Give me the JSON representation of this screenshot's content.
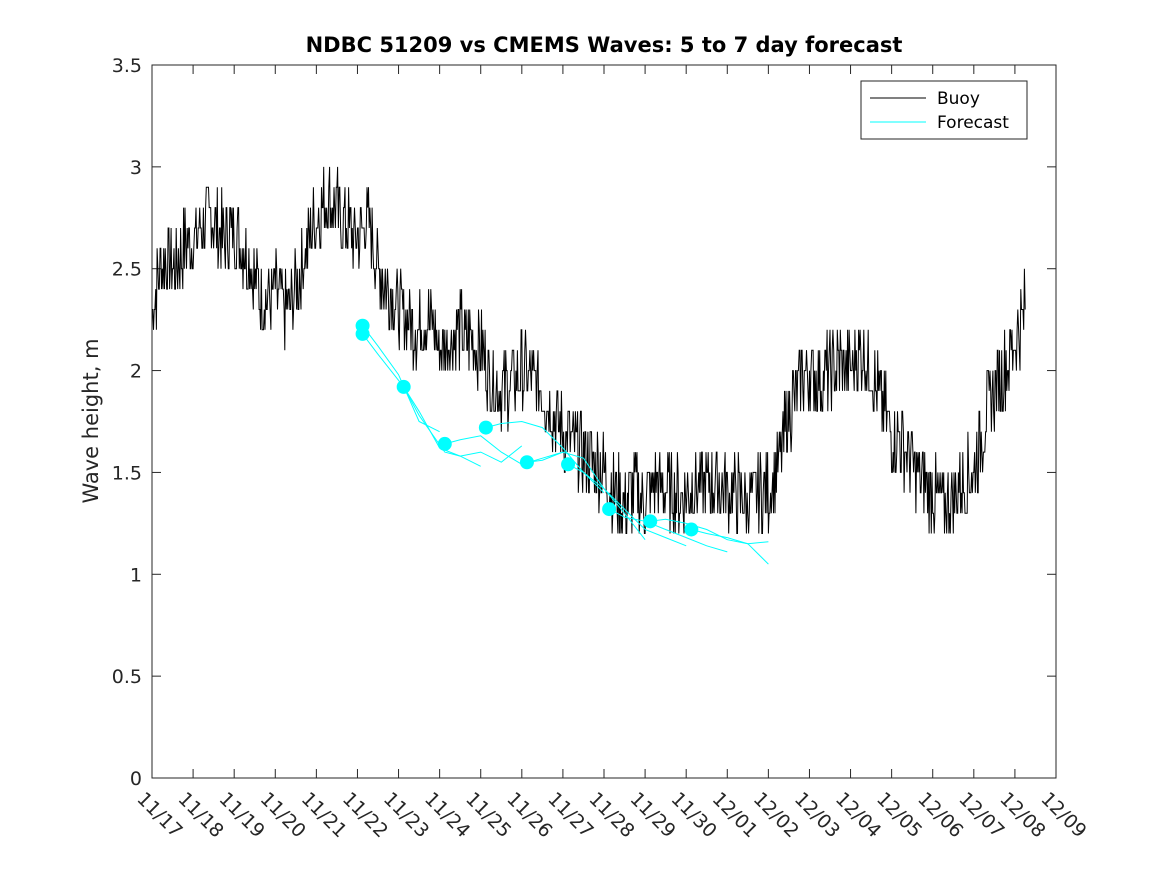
{
  "chart_data": {
    "type": "line",
    "title": "NDBC 51209 vs CMEMS Waves: 5 to 7 day forecast",
    "xlabel": "",
    "ylabel": "Wave height, m",
    "ylim": [
      0,
      3.5
    ],
    "yticks": [
      0,
      0.5,
      1,
      1.5,
      2,
      2.5,
      3,
      3.5
    ],
    "ytick_labels": [
      "0",
      "0.5",
      "1",
      "1.5",
      "2",
      "2.5",
      "3",
      "3.5"
    ],
    "xlim": [
      "11/17",
      "12/09"
    ],
    "xtick_labels": [
      "11/17",
      "11/18",
      "11/19",
      "11/20",
      "11/21",
      "11/22",
      "11/23",
      "11/24",
      "11/25",
      "11/26",
      "11/27",
      "11/28",
      "11/29",
      "11/30",
      "12/01",
      "12/02",
      "12/03",
      "12/04",
      "12/05",
      "12/06",
      "12/07",
      "12/08",
      "12/09"
    ],
    "grid": false,
    "legend": {
      "placement": "top-right",
      "entries": [
        "Buoy",
        "Forecast"
      ]
    },
    "colors": {
      "buoy": "#000000",
      "forecast": "#00FFFF"
    },
    "series": [
      {
        "name": "Buoy",
        "x": [
          "11/17",
          "11/17 06:00",
          "11/17 12:00",
          "11/17 18:00",
          "11/18",
          "11/18 06:00",
          "11/18 12:00",
          "11/18 18:00",
          "11/19",
          "11/19 06:00",
          "11/19 12:00",
          "11/19 18:00",
          "11/20",
          "11/20 06:00",
          "11/20 12:00",
          "11/20 18:00",
          "11/21",
          "11/21 06:00",
          "11/21 12:00",
          "11/21 18:00",
          "11/22",
          "11/22 06:00",
          "11/22 12:00",
          "11/22 18:00",
          "11/23",
          "11/23 06:00",
          "11/23 12:00",
          "11/23 18:00",
          "11/24",
          "11/24 06:00",
          "11/24 12:00",
          "11/24 18:00",
          "11/25",
          "11/25 06:00",
          "11/25 12:00",
          "11/25 18:00",
          "11/26",
          "11/26 06:00",
          "11/26 12:00",
          "11/26 18:00",
          "11/27",
          "11/27 06:00",
          "11/27 12:00",
          "11/27 18:00",
          "11/28",
          "11/28 06:00",
          "11/28 12:00",
          "11/28 18:00",
          "11/29",
          "11/29 06:00",
          "11/29 12:00",
          "11/29 18:00",
          "11/30",
          "11/30 06:00",
          "11/30 12:00",
          "11/30 18:00",
          "12/01",
          "12/01 06:00",
          "12/01 12:00",
          "12/01 18:00",
          "12/02",
          "12/02 06:00",
          "12/02 12:00",
          "12/02 18:00",
          "12/03",
          "12/03 06:00",
          "12/03 12:00",
          "12/03 18:00",
          "12/04",
          "12/04 06:00",
          "12/04 12:00",
          "12/04 18:00",
          "12/05",
          "12/05 06:00",
          "12/05 12:00",
          "12/05 18:00",
          "12/06",
          "12/06 06:00",
          "12/06 12:00",
          "12/06 18:00",
          "12/07",
          "12/07 06:00",
          "12/07 12:00",
          "12/07 18:00",
          "12/08",
          "12/08 06:00"
        ],
        "values": [
          2.3,
          2.55,
          2.5,
          2.6,
          2.65,
          2.7,
          2.75,
          2.65,
          2.7,
          2.6,
          2.45,
          2.35,
          2.4,
          2.3,
          2.4,
          2.6,
          2.75,
          2.85,
          2.8,
          2.7,
          2.65,
          2.75,
          2.5,
          2.4,
          2.3,
          2.25,
          2.2,
          2.25,
          2.1,
          2.15,
          2.2,
          2.15,
          2.1,
          1.95,
          1.9,
          1.95,
          2.0,
          1.95,
          1.9,
          1.8,
          1.7,
          1.65,
          1.6,
          1.55,
          1.5,
          1.4,
          1.35,
          1.4,
          1.35,
          1.45,
          1.4,
          1.4,
          1.4,
          1.45,
          1.45,
          1.45,
          1.4,
          1.4,
          1.35,
          1.4,
          1.4,
          1.55,
          1.8,
          1.95,
          2.0,
          1.95,
          2.0,
          2.05,
          2.0,
          2.1,
          2.0,
          1.85,
          1.7,
          1.65,
          1.55,
          1.45,
          1.4,
          1.35,
          1.4,
          1.45,
          1.5,
          1.75,
          1.9,
          2.0,
          2.15,
          2.3
        ]
      },
      {
        "name": "Forecast",
        "segments": [
          {
            "x": [
              "11/22 03:00",
              "11/22 12:00",
              "11/23",
              "11/23 12:00",
              "11/24"
            ],
            "values": [
              2.22,
              2.12,
              1.98,
              1.75,
              1.7
            ]
          },
          {
            "x": [
              "11/22 03:00",
              "11/22 12:00",
              "11/23 03:00",
              "11/23 12:00",
              "11/24",
              "11/24 12:00",
              "11/25"
            ],
            "values": [
              2.18,
              2.08,
              1.92,
              1.8,
              1.62,
              1.58,
              1.53
            ]
          },
          {
            "x": [
              "11/23 03:00",
              "11/23 12:00",
              "11/24 03:00",
              "11/24 12:00",
              "11/25",
              "11/25 12:00",
              "11/26"
            ],
            "values": [
              1.92,
              1.78,
              1.6,
              1.58,
              1.6,
              1.55,
              1.63
            ]
          },
          {
            "x": [
              "11/24 03:00",
              "11/24 12:00",
              "11/25",
              "11/25 12:00",
              "11/26",
              "11/26 12:00",
              "11/27"
            ],
            "values": [
              1.64,
              1.66,
              1.68,
              1.6,
              1.54,
              1.57,
              1.6
            ]
          },
          {
            "x": [
              "11/25 03:00",
              "11/25 12:00",
              "11/26",
              "11/26 12:00",
              "11/27",
              "11/27 12:00",
              "11/28"
            ],
            "values": [
              1.72,
              1.74,
              1.75,
              1.72,
              1.62,
              1.5,
              1.4
            ]
          },
          {
            "x": [
              "11/26 03:00",
              "11/26 12:00",
              "11/27",
              "11/27 12:00",
              "11/28",
              "11/28 12:00",
              "11/29"
            ],
            "values": [
              1.55,
              1.56,
              1.6,
              1.57,
              1.42,
              1.3,
              1.17
            ]
          },
          {
            "x": [
              "11/27 03:00",
              "11/27 12:00",
              "11/28",
              "11/28 12:00",
              "11/29",
              "11/29 12:00",
              "11/30"
            ],
            "values": [
              1.54,
              1.5,
              1.42,
              1.32,
              1.22,
              1.18,
              1.14
            ]
          },
          {
            "x": [
              "11/28 03:00",
              "11/28 12:00",
              "11/29",
              "11/29 12:00",
              "11/30",
              "11/30 12:00",
              "12/01"
            ],
            "values": [
              1.32,
              1.28,
              1.26,
              1.22,
              1.18,
              1.14,
              1.11
            ]
          },
          {
            "x": [
              "11/29 03:00",
              "11/29 12:00",
              "11/30",
              "11/30 12:00",
              "12/01",
              "12/01 12:00",
              "12/02"
            ],
            "values": [
              1.26,
              1.27,
              1.25,
              1.22,
              1.17,
              1.15,
              1.05
            ]
          },
          {
            "x": [
              "11/30 03:00",
              "11/30 12:00",
              "12/01",
              "12/01 12:00",
              "12/02"
            ],
            "values": [
              1.22,
              1.2,
              1.18,
              1.15,
              1.16
            ]
          }
        ],
        "initial_points": {
          "x": [
            "11/22 03:00",
            "11/22 03:00",
            "11/23 03:00",
            "11/24 03:00",
            "11/25 03:00",
            "11/26 03:00",
            "11/27 03:00",
            "11/28 03:00",
            "11/29 03:00",
            "11/30 03:00"
          ],
          "values": [
            2.22,
            2.18,
            1.92,
            1.64,
            1.72,
            1.55,
            1.54,
            1.32,
            1.26,
            1.22
          ]
        }
      }
    ]
  }
}
